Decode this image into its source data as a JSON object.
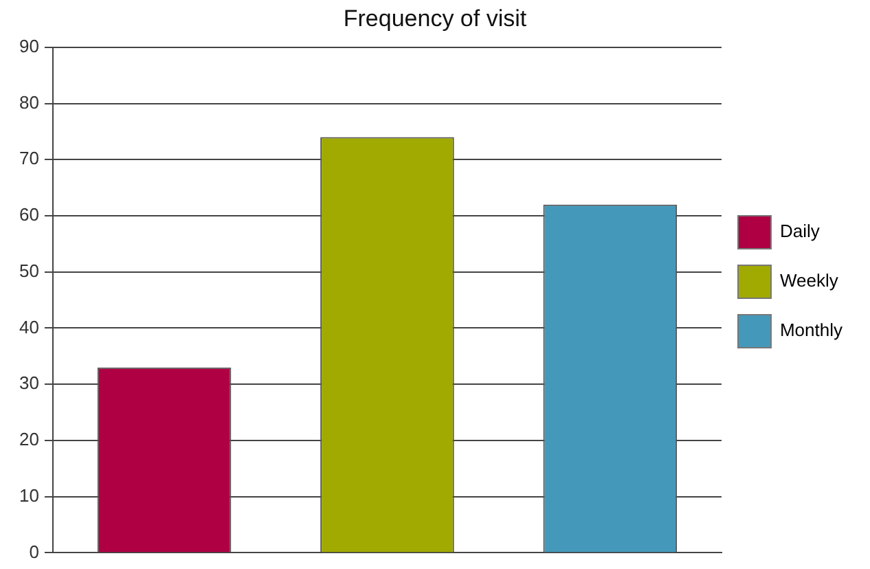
{
  "chart_data": {
    "type": "bar",
    "title": "Frequency of visit",
    "categories": [
      null,
      null,
      null
    ],
    "series": [
      {
        "name": "Daily",
        "color": "#b00044",
        "values": [
          33,
          null,
          null
        ]
      },
      {
        "name": "Weekly",
        "color": "#a0aa00",
        "values": [
          null,
          74,
          null
        ]
      },
      {
        "name": "Monthly",
        "color": "#4499bb",
        "values": [
          null,
          null,
          62
        ]
      }
    ],
    "ylim": [
      0,
      90
    ],
    "yticks": [
      0,
      10,
      20,
      30,
      40,
      50,
      60,
      70,
      80,
      90
    ],
    "grid": "y",
    "legend": "right",
    "tick_labels": "y"
  }
}
